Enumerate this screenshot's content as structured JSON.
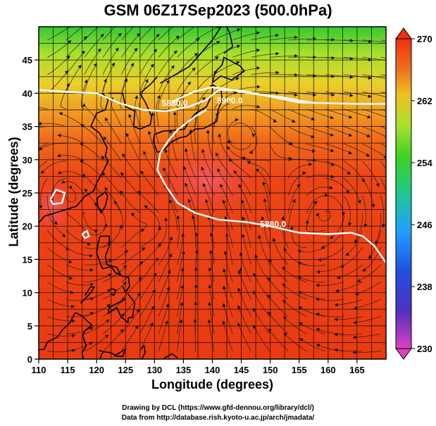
{
  "title": "GSM 06Z17Sep2023 (500.0hPa)",
  "xlabel": "Longitude (degrees)",
  "ylabel": "Latitude (degrees)",
  "credit_drawing": "Drawing by DCL (https://www.gfd-dennou.org/library/dcl/)",
  "credit_data": "Data from http://database.rish.kyoto-u.ac.jp/arch/jmadata/",
  "map": {
    "lon_range": [
      110,
      170
    ],
    "lat_range": [
      0,
      50
    ],
    "lon_ticks": [
      "110",
      "115",
      "120",
      "125",
      "130",
      "135",
      "140",
      "145",
      "150",
      "155",
      "160",
      "165"
    ],
    "lat_ticks": [
      "0",
      "5",
      "10",
      "15",
      "20",
      "25",
      "30",
      "35",
      "40",
      "45"
    ],
    "grid_lines": true,
    "field": "temperature (K), shaded",
    "streamlines": true,
    "coastlines": true,
    "contours": [
      {
        "label": "5880.0",
        "color": "#ffffff"
      },
      {
        "label": "5900.0",
        "color": "#ffffff"
      },
      {
        "label": "5880.0",
        "color": "#ffffff"
      }
    ]
  },
  "colorbar": {
    "ticks": [
      "270",
      "262",
      "254",
      "246",
      "238",
      "230"
    ],
    "min": 230,
    "max": 270,
    "colors": [
      "#e040c0",
      "#3030c0",
      "#2080ff",
      "#20c0c0",
      "#30c030",
      "#a0e030",
      "#f0d020",
      "#f08020",
      "#f03010"
    ]
  }
}
